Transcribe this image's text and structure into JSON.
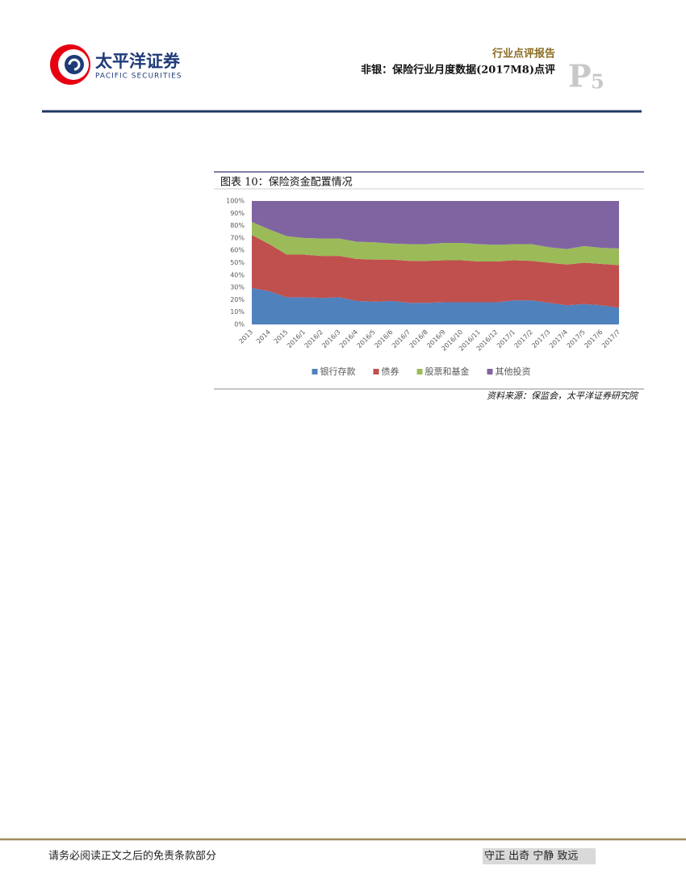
{
  "header": {
    "logo_cn": "太平洋证券",
    "logo_en": "PACIFIC SECURITIES",
    "report_type": "行业点评报告",
    "report_title": "非银：保险行业月度数据(2017M8)点评",
    "page_prefix": "P",
    "page_number": "5"
  },
  "figure": {
    "caption": "图表 10：保险资金配置情况",
    "source": "资料来源：保监会，太平洋证券研究院"
  },
  "chart_data": {
    "type": "stacked-area",
    "categories": [
      "2013",
      "2014",
      "2015",
      "2016/1",
      "2016/2",
      "2016/3",
      "2016/4",
      "2016/5",
      "2016/6",
      "2016/7",
      "2016/8",
      "2016/9",
      "2016/10",
      "2016/11",
      "2016/12",
      "2017/1",
      "2017/2",
      "2017/3",
      "2017/4",
      "2017/5",
      "2017/6",
      "2017/7"
    ],
    "series": [
      {
        "name": "银行存款",
        "color": "#4f81bd",
        "values": [
          29.5,
          27,
          22,
          22,
          21.5,
          22,
          19,
          18.5,
          19,
          17.5,
          17.5,
          18,
          18,
          18,
          18,
          19.5,
          19.5,
          17.5,
          15.5,
          16.5,
          15.5,
          13.5
        ]
      },
      {
        "name": "债券",
        "color": "#c0504d",
        "values": [
          43,
          38,
          34.5,
          34.5,
          34,
          33.5,
          34,
          34,
          33.5,
          34,
          34,
          34,
          34,
          33,
          33,
          32.5,
          32,
          32.5,
          33,
          33.5,
          33.5,
          34.5
        ]
      },
      {
        "name": "股票和基金",
        "color": "#9bbb59",
        "values": [
          10.5,
          12,
          15,
          13.5,
          14,
          14,
          14,
          14,
          13,
          13.5,
          13.5,
          14,
          14,
          14,
          13.5,
          13,
          13.5,
          12.5,
          12.5,
          13.5,
          13,
          13.5
        ]
      },
      {
        "name": "其他投资",
        "color": "#8064a2",
        "values": [
          17,
          23,
          28.5,
          30,
          30.5,
          30.5,
          33,
          33.5,
          34.5,
          35,
          35,
          34,
          34,
          35,
          35.5,
          35,
          35,
          37.5,
          39,
          36.5,
          38,
          38.5
        ]
      }
    ],
    "ylim": [
      0,
      100
    ],
    "yticks": [
      {
        "value": 0,
        "label": "0%"
      },
      {
        "value": 10,
        "label": "10%"
      },
      {
        "value": 20,
        "label": "20%"
      },
      {
        "value": 30,
        "label": "30%"
      },
      {
        "value": 40,
        "label": "40%"
      },
      {
        "value": 50,
        "label": "50%"
      },
      {
        "value": 60,
        "label": "60%"
      },
      {
        "value": 70,
        "label": "70%"
      },
      {
        "value": 80,
        "label": "80%"
      },
      {
        "value": 90,
        "label": "90%"
      },
      {
        "value": 100,
        "label": "100%"
      }
    ],
    "legend": "bottom"
  },
  "footer": {
    "disclaimer": "请务必阅读正文之后的免责条款部分",
    "motto": "守正 出奇 宁静 致远"
  }
}
